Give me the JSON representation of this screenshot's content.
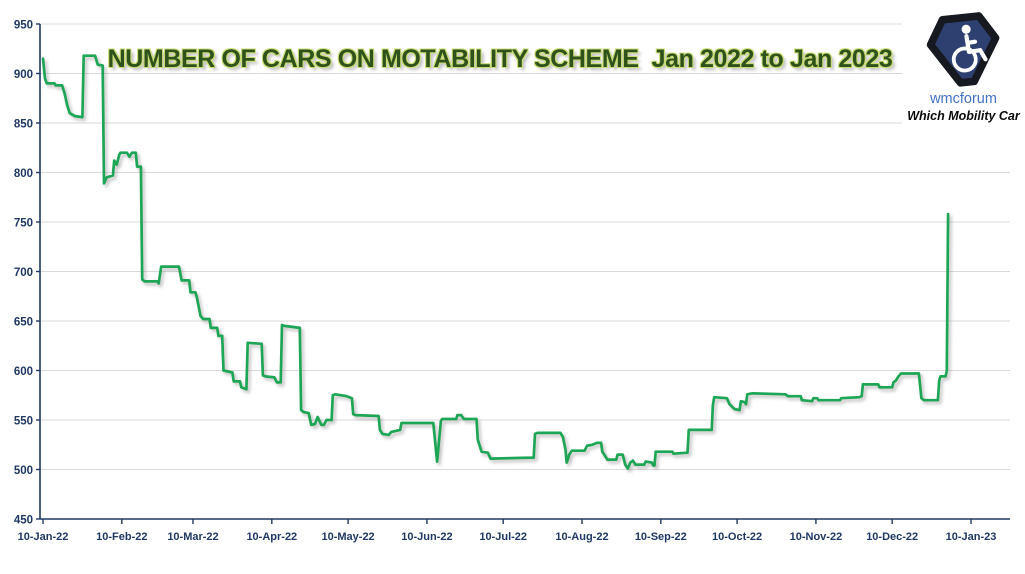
{
  "page": {
    "background": "#ffffff"
  },
  "header": {
    "title": "NUMBER OF CARS ON MOTABILITY SCHEME  Jan 2022 to Jan 2023",
    "title_color": "#2f511b",
    "title_glow_color": "#c9dc72"
  },
  "branding": {
    "forum_name": "wmcforum",
    "tagline": "Which Mobility Car",
    "forum_name_color": "#4472c4",
    "badge_fill": "#2e4070",
    "badge_border": "#16191f",
    "badge_icon": "wheelchair-icon"
  },
  "chart_data": {
    "type": "line",
    "title": "NUMBER OF CARS ON MOTABILITY SCHEME  Jan 2022 to Jan 2023",
    "grid": "horizontal-only",
    "grid_color": "#d9d9d9",
    "axis_color": "#1f3864",
    "x_axis": {
      "tick_labels": [
        "10-Jan-22",
        "10-Feb-22",
        "10-Mar-22",
        "10-Apr-22",
        "10-May-22",
        "10-Jun-22",
        "10-Jul-22",
        "10-Aug-22",
        "10-Sep-22",
        "10-Oct-22",
        "10-Nov-22",
        "10-Dec-22",
        "10-Jan-23"
      ],
      "tick_days_from_start": [
        0,
        31,
        59,
        90,
        120,
        151,
        181,
        212,
        243,
        273,
        304,
        334,
        365
      ]
    },
    "y_axis": {
      "ticks": [
        450,
        500,
        550,
        600,
        650,
        700,
        750,
        800,
        850,
        900,
        950
      ],
      "min": 450,
      "max": 950
    },
    "series": [
      {
        "name": "Number of cars on Motability scheme",
        "color": "#1aa654",
        "points_day_value": [
          [
            0,
            915
          ],
          [
            0.8,
            895
          ],
          [
            1.5,
            890
          ],
          [
            4.5,
            890
          ],
          [
            5,
            888
          ],
          [
            7.5,
            888
          ],
          [
            8.5,
            880
          ],
          [
            9.5,
            868
          ],
          [
            10.5,
            860
          ],
          [
            12.5,
            857
          ],
          [
            15.5,
            856
          ],
          [
            16,
            918
          ],
          [
            20.5,
            918
          ],
          [
            21.5,
            909
          ],
          [
            23.5,
            908
          ],
          [
            24,
            789
          ],
          [
            25,
            795
          ],
          [
            27.5,
            797
          ],
          [
            28,
            812
          ],
          [
            29,
            808
          ],
          [
            30,
            818
          ],
          [
            30.5,
            820
          ],
          [
            33,
            820
          ],
          [
            34,
            816
          ],
          [
            35,
            820
          ],
          [
            36.5,
            820
          ],
          [
            37,
            806
          ],
          [
            38.5,
            806
          ],
          [
            39,
            692
          ],
          [
            40,
            690
          ],
          [
            45,
            690
          ],
          [
            45.5,
            688
          ],
          [
            46.5,
            705
          ],
          [
            53.5,
            705
          ],
          [
            54.5,
            691
          ],
          [
            57.5,
            691
          ],
          [
            58,
            679
          ],
          [
            60,
            679
          ],
          [
            60.5,
            674
          ],
          [
            62,
            655
          ],
          [
            63,
            652
          ],
          [
            65.5,
            652
          ],
          [
            66,
            643
          ],
          [
            68.5,
            643
          ],
          [
            69,
            635
          ],
          [
            70.5,
            635
          ],
          [
            71,
            600
          ],
          [
            74.5,
            598
          ],
          [
            75,
            589
          ],
          [
            77.5,
            589
          ],
          [
            78,
            583
          ],
          [
            80,
            581
          ],
          [
            80.5,
            628
          ],
          [
            86,
            627
          ],
          [
            86.5,
            595
          ],
          [
            87.5,
            594
          ],
          [
            91,
            593
          ],
          [
            92,
            588
          ],
          [
            93.5,
            588
          ],
          [
            94,
            646
          ],
          [
            95,
            645
          ],
          [
            101,
            643
          ],
          [
            101.5,
            560
          ],
          [
            102.5,
            558
          ],
          [
            104.5,
            557
          ],
          [
            105.5,
            545
          ],
          [
            107,
            546
          ],
          [
            108,
            553
          ],
          [
            109.5,
            545
          ],
          [
            110.5,
            545
          ],
          [
            111.5,
            550
          ],
          [
            113.5,
            550
          ],
          [
            114,
            575
          ],
          [
            115,
            576
          ],
          [
            119.5,
            574
          ],
          [
            121.5,
            572
          ],
          [
            122,
            556
          ],
          [
            123,
            555
          ],
          [
            132,
            554
          ],
          [
            132.5,
            540
          ],
          [
            133.5,
            536
          ],
          [
            136,
            535
          ],
          [
            137,
            538
          ],
          [
            140.5,
            540
          ],
          [
            141,
            547
          ],
          [
            153.5,
            547
          ],
          [
            155,
            508
          ],
          [
            156.5,
            549
          ],
          [
            157,
            551
          ],
          [
            162.5,
            551
          ],
          [
            163,
            555
          ],
          [
            164.5,
            555
          ],
          [
            165.5,
            551
          ],
          [
            170.5,
            551
          ],
          [
            171,
            530
          ],
          [
            172.5,
            518
          ],
          [
            175,
            517
          ],
          [
            176,
            511
          ],
          [
            193,
            512
          ],
          [
            193.5,
            536
          ],
          [
            194.5,
            537
          ],
          [
            203.5,
            537
          ],
          [
            204.5,
            533
          ],
          [
            205.5,
            520
          ],
          [
            206,
            507
          ],
          [
            207,
            515
          ],
          [
            208,
            519
          ],
          [
            213,
            519
          ],
          [
            214,
            524
          ],
          [
            216,
            525
          ],
          [
            218,
            527
          ],
          [
            219.5,
            527
          ],
          [
            220,
            518
          ],
          [
            221,
            514
          ],
          [
            222,
            510
          ],
          [
            225.5,
            510
          ],
          [
            226,
            515
          ],
          [
            228,
            515
          ],
          [
            229,
            505
          ],
          [
            230,
            501
          ],
          [
            231,
            507
          ],
          [
            232,
            509
          ],
          [
            233,
            505
          ],
          [
            236.5,
            505
          ],
          [
            237,
            508
          ],
          [
            239.5,
            507
          ],
          [
            240,
            504
          ],
          [
            240.5,
            504
          ],
          [
            241,
            518
          ],
          [
            247.5,
            518
          ],
          [
            248,
            516
          ],
          [
            253.5,
            517
          ],
          [
            254,
            540
          ],
          [
            263,
            540
          ],
          [
            263.5,
            565
          ],
          [
            264,
            573
          ],
          [
            269,
            572
          ],
          [
            270,
            566
          ],
          [
            272,
            561
          ],
          [
            274,
            560
          ],
          [
            274.5,
            569
          ],
          [
            276,
            568
          ],
          [
            276.5,
            566
          ],
          [
            277,
            576
          ],
          [
            279,
            577
          ],
          [
            292,
            576
          ],
          [
            293,
            574
          ],
          [
            298,
            574
          ],
          [
            298.5,
            570
          ],
          [
            302.5,
            569
          ],
          [
            303,
            572
          ],
          [
            304.5,
            572
          ],
          [
            305,
            570
          ],
          [
            313.5,
            570
          ],
          [
            314,
            572
          ],
          [
            321,
            573
          ],
          [
            322,
            574
          ],
          [
            322.5,
            586
          ],
          [
            328.5,
            586
          ],
          [
            329,
            583
          ],
          [
            334,
            583
          ],
          [
            334.5,
            588
          ],
          [
            335.5,
            590
          ],
          [
            336.5,
            594
          ],
          [
            337.5,
            597
          ],
          [
            344.5,
            597
          ],
          [
            345.5,
            572
          ],
          [
            346.5,
            570
          ],
          [
            352,
            570
          ],
          [
            352.5,
            590
          ],
          [
            353,
            594
          ],
          [
            355,
            594
          ],
          [
            355.5,
            600
          ],
          [
            356,
            758
          ]
        ]
      }
    ]
  }
}
